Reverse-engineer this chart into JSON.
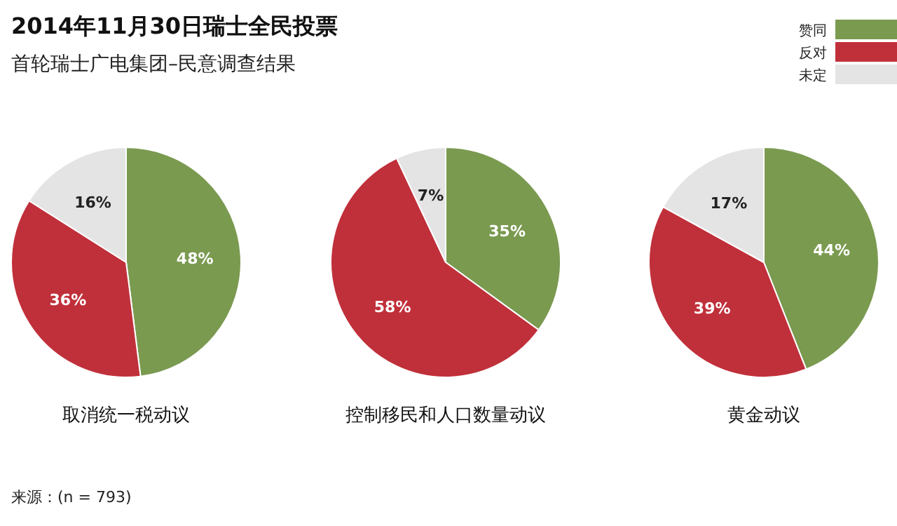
{
  "chart_data": [
    {
      "type": "pie",
      "title": "2014年11月30日瑞士全民投票",
      "subtitle": "首轮瑞士广电集团–民意调查结果",
      "xlabel": "取消统一税动议",
      "categories": [
        "赞同",
        "反对",
        "未定"
      ],
      "values": [
        48,
        36,
        16
      ],
      "value_labels": [
        "48%",
        "36%",
        "16%"
      ],
      "colors": [
        "#7a9a50",
        "#c0303a",
        "#e4e4e4"
      ],
      "legend": "top right",
      "annotations": [
        "来源：(n = 793)"
      ]
    },
    {
      "type": "pie",
      "xlabel": "控制移民和人口数量动议",
      "categories": [
        null,
        null,
        null
      ],
      "values": [
        35,
        58,
        7
      ],
      "value_labels": [
        "35%",
        "58%",
        "7%"
      ],
      "colors": [
        "#7a9a50",
        "#c0303a",
        "#e4e4e4"
      ]
    },
    {
      "type": "pie",
      "xlabel": "黄金动议",
      "categories": [
        null,
        null,
        null
      ],
      "values": [
        44,
        39,
        17
      ],
      "value_labels": [
        "44%",
        "39%",
        "17%"
      ],
      "colors": [
        "#7a9a50",
        "#c0303a",
        "#e4e4e4"
      ]
    }
  ]
}
